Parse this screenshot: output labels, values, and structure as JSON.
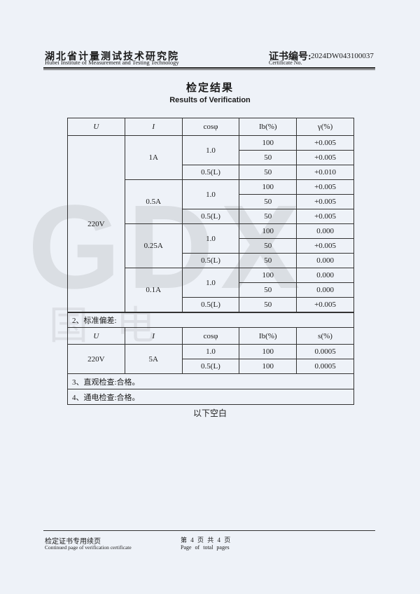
{
  "watermark": {
    "logo": "GDX",
    "text": "国电"
  },
  "header": {
    "institute_cn": "湖北省计量测试技术研究院",
    "institute_en": "Hubei Institute of Measurement and Testing Technology",
    "cert_label_cn": "证书编号:",
    "cert_label_en": "Certificate No.",
    "cert_no": "2024DW043100037"
  },
  "title": "检定结果",
  "subtitle": "Results of Verification",
  "table1": {
    "headers": [
      "U",
      "I",
      "cosφ",
      "Ib(%)",
      "γ(%)"
    ],
    "U": "220V",
    "groups": [
      {
        "I": "1A",
        "rows": [
          {
            "cos": "1.0",
            "ib": "100",
            "g": "+0.005"
          },
          {
            "ib": "50",
            "g": "+0.005"
          },
          {
            "cos": "0.5(L)",
            "ib": "50",
            "g": "+0.010"
          }
        ]
      },
      {
        "I": "0.5A",
        "rows": [
          {
            "cos": "1.0",
            "ib": "100",
            "g": "+0.005"
          },
          {
            "ib": "50",
            "g": "+0.005"
          },
          {
            "cos": "0.5(L)",
            "ib": "50",
            "g": "+0.005"
          }
        ]
      },
      {
        "I": "0.25A",
        "rows": [
          {
            "cos": "1.0",
            "ib": "100",
            "g": "0.000"
          },
          {
            "ib": "50",
            "g": "+0.005"
          },
          {
            "cos": "0.5(L)",
            "ib": "50",
            "g": "0.000"
          }
        ]
      },
      {
        "I": "0.1A",
        "rows": [
          {
            "cos": "1.0",
            "ib": "100",
            "g": "0.000"
          },
          {
            "ib": "50",
            "g": "0.000"
          },
          {
            "cos": "0.5(L)",
            "ib": "50",
            "g": "+0.005"
          }
        ]
      }
    ]
  },
  "section2": "2、标准偏差:",
  "table2": {
    "headers": [
      "U",
      "I",
      "cosφ",
      "Ib(%)",
      "s(%)"
    ],
    "U": "220V",
    "I": "5A",
    "rows": [
      {
        "cos": "1.0",
        "ib": "100",
        "s": "0.0005"
      },
      {
        "cos": "0.5(L)",
        "ib": "100",
        "s": "0.0005"
      }
    ]
  },
  "section3": "3、直观检查:合格。",
  "section4": "4、通电检查:合格。",
  "blank_note": "以下空白",
  "footer": {
    "cn": "检定证书专用续页",
    "en": "Continued page of verification certificate",
    "page_cn": "第 4 页 共 4 页",
    "page_en": "Page of total pages"
  }
}
